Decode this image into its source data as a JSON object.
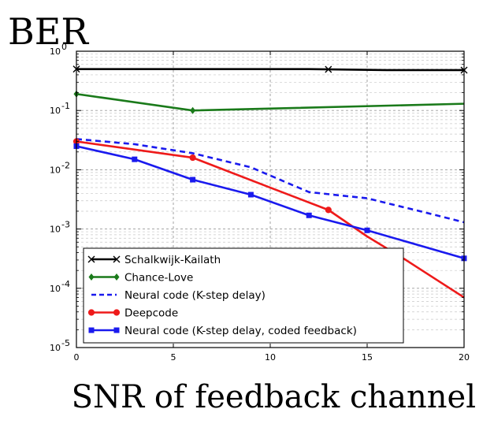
{
  "chart_data": {
    "type": "line",
    "title": "BER",
    "xlabel": "SNR of feedback channel",
    "ylabel": "BER",
    "xlim": [
      0,
      20
    ],
    "ylim": [
      1e-05,
      1
    ],
    "yscale": "log",
    "grid": true,
    "xticks": [
      0,
      5,
      10,
      15,
      20
    ],
    "yticks": [
      {
        "value": 1,
        "label_base": "10",
        "label_exp": "0"
      },
      {
        "value": 0.1,
        "label_base": "10",
        "label_exp": "-1"
      },
      {
        "value": 0.01,
        "label_base": "10",
        "label_exp": "-2"
      },
      {
        "value": 0.001,
        "label_base": "10",
        "label_exp": "-3"
      },
      {
        "value": 0.0001,
        "label_base": "10",
        "label_exp": "-4"
      },
      {
        "value": 1e-05,
        "label_base": "10",
        "label_exp": "-5"
      }
    ],
    "legend_position": "bottom-left",
    "series": [
      {
        "name": "Schalkwijk-Kailath",
        "color": "#000000",
        "style": "solid",
        "marker": "x",
        "x": [
          0,
          2,
          4,
          6,
          8,
          10,
          12,
          14,
          16,
          18,
          20
        ],
        "y": [
          0.5,
          0.5,
          0.5,
          0.5,
          0.5,
          0.5,
          0.5,
          0.49,
          0.48,
          0.48,
          0.48
        ],
        "marker_x": [
          0,
          13,
          20
        ]
      },
      {
        "name": "Chance-Love",
        "color": "#1a7a1a",
        "style": "solid",
        "marker": "diamond",
        "x": [
          0,
          6,
          20
        ],
        "y": [
          0.19,
          0.1,
          0.13
        ],
        "marker_x": [
          0,
          6
        ]
      },
      {
        "name": "Neural code (K-step delay)",
        "color": "#1a1aee",
        "style": "dashed",
        "marker": "none",
        "x": [
          0,
          3,
          6,
          9,
          12,
          15,
          18,
          20
        ],
        "y": [
          0.033,
          0.027,
          0.019,
          0.011,
          0.0042,
          0.0033,
          0.0019,
          0.0013
        ],
        "marker_x": []
      },
      {
        "name": "Deepcode",
        "color": "#ee1a1a",
        "style": "solid",
        "marker": "circle",
        "x": [
          0,
          6,
          10,
          13,
          15,
          17,
          20
        ],
        "y": [
          0.03,
          0.016,
          0.005,
          0.0021,
          0.00075,
          0.0003,
          7e-05
        ],
        "marker_x": [
          0,
          6,
          13
        ]
      },
      {
        "name": "Neural code (K-step delay, coded feedback)",
        "color": "#1a1aee",
        "style": "solid",
        "marker": "square",
        "x": [
          0,
          3,
          6,
          9,
          12,
          15,
          20
        ],
        "y": [
          0.025,
          0.015,
          0.0068,
          0.0038,
          0.0017,
          0.00095,
          0.00032
        ],
        "marker_x": [
          0,
          3,
          6,
          9,
          12,
          15,
          20
        ]
      }
    ]
  }
}
